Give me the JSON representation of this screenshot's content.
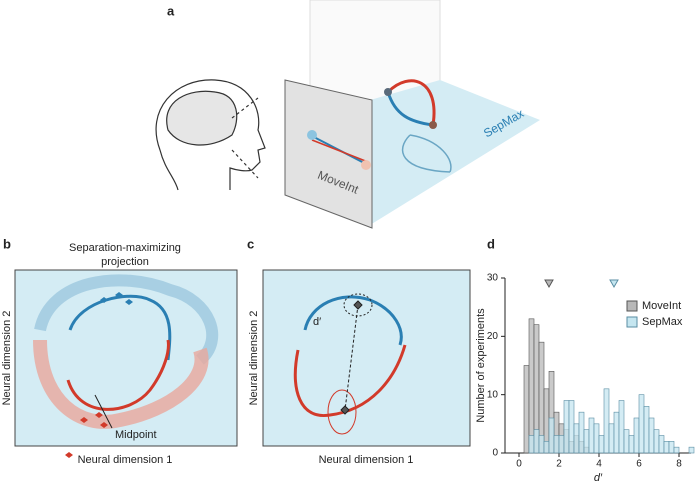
{
  "panels": {
    "a": {
      "label": "a",
      "plane_left": "MoveInt",
      "plane_right": "SepMax"
    },
    "b": {
      "label": "b",
      "title_line1": "Separation-maximizing",
      "title_line2": "projection",
      "xlabel": "Neural dimension 1",
      "ylabel": "Neural dimension 2",
      "annotation": "Midpoint"
    },
    "c": {
      "label": "c",
      "xlabel": "Neural dimension 1",
      "ylabel": "Neural dimension 2",
      "annotation": "d′"
    },
    "d": {
      "label": "d"
    }
  },
  "chart_data": {
    "type": "histogram",
    "xlabel": "d′",
    "ylabel": "Number of experiments",
    "bins": [
      0,
      0.25,
      0.5,
      0.75,
      1,
      1.25,
      1.5,
      1.75,
      2,
      2.25,
      2.5,
      2.75,
      3,
      3.25,
      3.5,
      3.75,
      4,
      4.25,
      4.5,
      4.75,
      5,
      5.25,
      5.5,
      5.75,
      6,
      6.25,
      6.5,
      6.75,
      7,
      7.25,
      7.5,
      7.75,
      8,
      8.25,
      8.5,
      8.75
    ],
    "series": [
      {
        "name": "MoveInt",
        "color": "#b8b8b8",
        "edge": "#555555",
        "mean": 1.5,
        "values": [
          0,
          15,
          23,
          22,
          19,
          11,
          14,
          7,
          5,
          4,
          2,
          3,
          2,
          1,
          0,
          0,
          0,
          0,
          0,
          0,
          0,
          0,
          0,
          0,
          0,
          0,
          0,
          0,
          0,
          0,
          0,
          0,
          0,
          0,
          0
        ]
      },
      {
        "name": "SepMax",
        "color": "#c5e6f0",
        "edge": "#5a8ea3",
        "mean": 4.75,
        "values": [
          0,
          0,
          3,
          4,
          3,
          2,
          6,
          3,
          3,
          9,
          9,
          5,
          7,
          4,
          6,
          5,
          3,
          11,
          5,
          7,
          9,
          4,
          3,
          6,
          10,
          8,
          6,
          4,
          3,
          2,
          2,
          1,
          0,
          0,
          1
        ]
      }
    ],
    "xlim": [
      -0.7,
      8.6
    ],
    "ylim": [
      0,
      30
    ],
    "xticks": [
      0,
      2,
      4,
      6,
      8
    ],
    "yticks": [
      0,
      10,
      20,
      30
    ],
    "legend": "upper right"
  }
}
